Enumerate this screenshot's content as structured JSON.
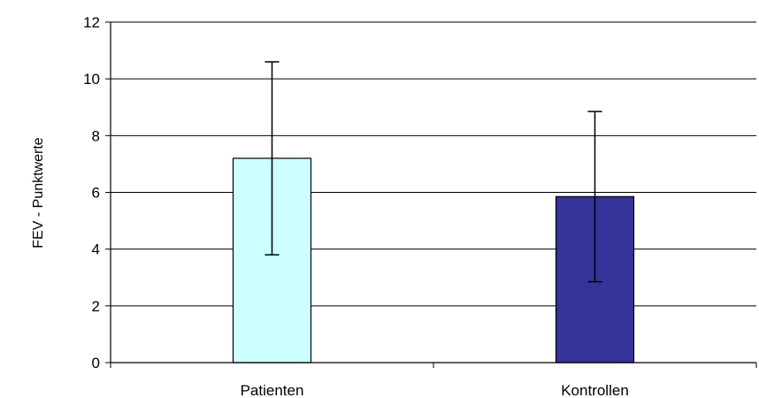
{
  "chart_data": {
    "type": "bar",
    "title": "",
    "xlabel": "",
    "ylabel": "FEV - Punktwerte",
    "categories": [
      "Patienten",
      "Kontrollen"
    ],
    "values": [
      7.2,
      5.85
    ],
    "error_low": [
      3.8,
      2.85
    ],
    "error_high": [
      10.6,
      8.85
    ],
    "ylim": [
      0,
      12
    ],
    "yticks": [
      0,
      2,
      4,
      6,
      8,
      10,
      12
    ],
    "grid": true,
    "legend": "none",
    "bar_colors": [
      "#ccffff",
      "#333399"
    ],
    "bar_outline": "#000000",
    "gridline_color": "#000000"
  }
}
